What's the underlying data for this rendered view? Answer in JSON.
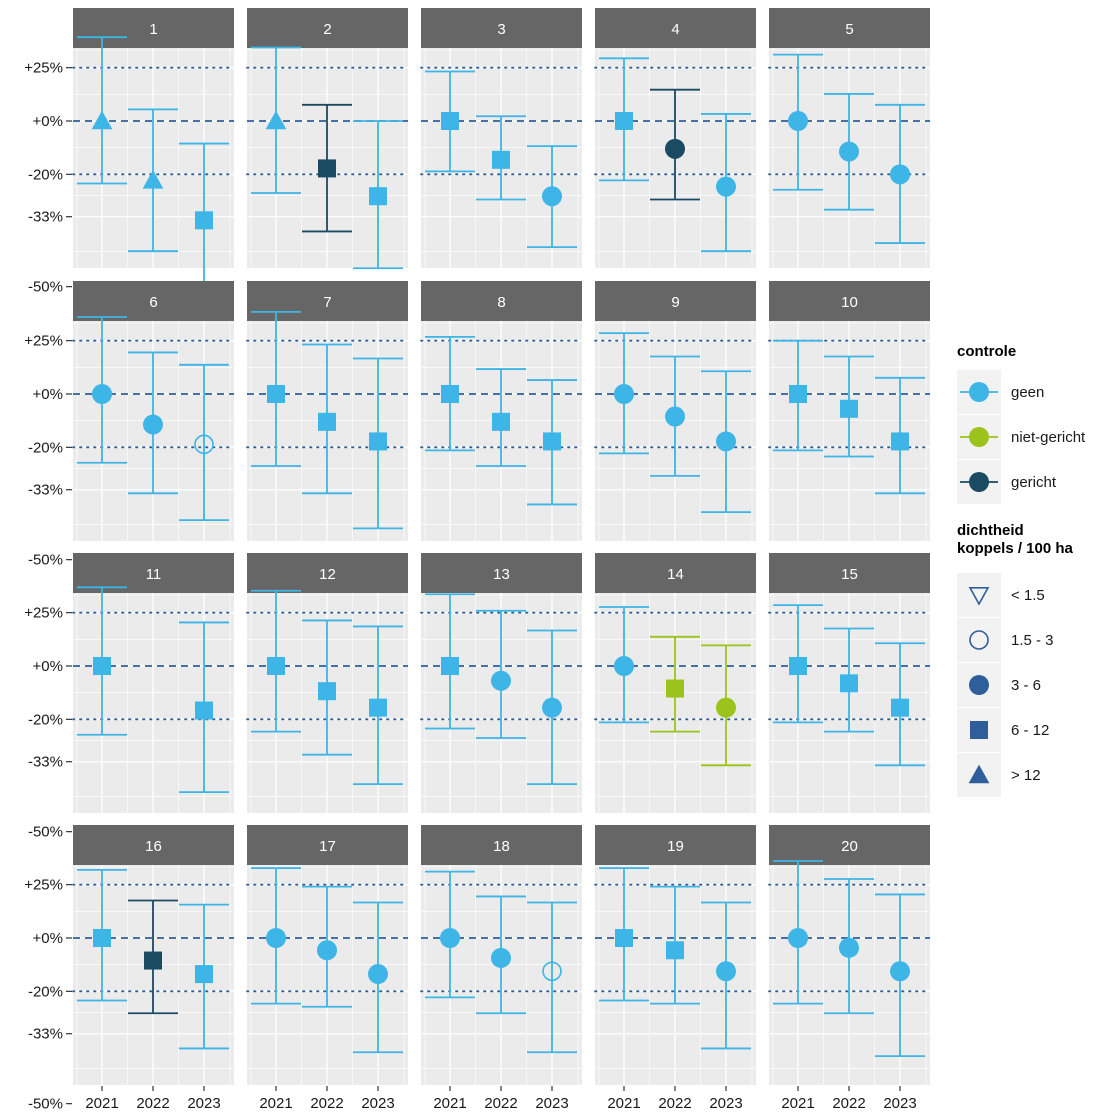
{
  "chart_data": {
    "type": "errorbar-faceted",
    "categories": [
      "2021",
      "2022",
      "2023"
    ],
    "y_scale": "log-ratio",
    "y_ticks": [
      {
        "value": 25,
        "label": "+25%"
      },
      {
        "value": 0,
        "label": "+0%"
      },
      {
        "value": -20,
        "label": "-20%"
      },
      {
        "value": -33,
        "label": "-33%"
      },
      {
        "value": -50,
        "label": "-50%"
      }
    ],
    "dashed_line": 0,
    "dotted_lines": [
      25,
      -20
    ],
    "ylim": [
      -55,
      45
    ],
    "grid": true,
    "colors": {
      "geen": "#3db5e6",
      "niet-gericht": "#9bc31b",
      "gericht": "#1b4a63",
      "strip_bg": "#666666",
      "panel_bg": "#ebebeb",
      "ref_line": "#2f5f9a",
      "legend_shape": "#2f5f9a"
    },
    "legend": {
      "position": "right",
      "color_title": "controle",
      "color_items": [
        "geen",
        "niet-gericht",
        "gericht"
      ],
      "shape_title_line1": "dichtheid",
      "shape_title_line2": "koppels / 100 ha",
      "shape_items": [
        {
          "label": "< 1.5",
          "shape": "triangle-down-open"
        },
        {
          "label": "1.5 - 3",
          "shape": "circle-open"
        },
        {
          "label": "3 - 6",
          "shape": "circle"
        },
        {
          "label": "6 - 12",
          "shape": "square"
        },
        {
          "label": "> 12",
          "shape": "triangle"
        }
      ]
    },
    "facets": [
      {
        "label": "1",
        "points": [
          {
            "year": "2021",
            "y": 0,
            "lo": -23,
            "hi": 42,
            "controle": "geen",
            "shape": "triangle"
          },
          {
            "year": "2022",
            "y": -22,
            "lo": -42,
            "hi": 5,
            "controle": "geen",
            "shape": "triangle"
          },
          {
            "year": "2023",
            "y": -34,
            "lo": -55,
            "hi": -9,
            "controle": "geen",
            "shape": "square"
          }
        ]
      },
      {
        "label": "2",
        "points": [
          {
            "year": "2021",
            "y": 0,
            "lo": -26,
            "hi": 36,
            "controle": "geen",
            "shape": "triangle"
          },
          {
            "year": "2022",
            "y": -18,
            "lo": -37,
            "hi": 7,
            "controle": "gericht",
            "shape": "square"
          },
          {
            "year": "2023",
            "y": -27,
            "lo": -46,
            "hi": 0,
            "controle": "geen",
            "shape": "square"
          }
        ]
      },
      {
        "label": "3",
        "points": [
          {
            "year": "2021",
            "y": 0,
            "lo": -19,
            "hi": 23,
            "controle": "geen",
            "shape": "square"
          },
          {
            "year": "2022",
            "y": -15,
            "lo": -28,
            "hi": 2,
            "controle": "geen",
            "shape": "square"
          },
          {
            "year": "2023",
            "y": -27,
            "lo": -41,
            "hi": -10,
            "controle": "geen",
            "shape": "circle"
          }
        ]
      },
      {
        "label": "4",
        "points": [
          {
            "year": "2021",
            "y": 0,
            "lo": -22,
            "hi": 30,
            "controle": "geen",
            "shape": "square"
          },
          {
            "year": "2022",
            "y": -11,
            "lo": -28,
            "hi": 14,
            "controle": "gericht",
            "shape": "circle"
          },
          {
            "year": "2023",
            "y": -24,
            "lo": -42,
            "hi": 3,
            "controle": "geen",
            "shape": "circle"
          }
        ]
      },
      {
        "label": "5",
        "points": [
          {
            "year": "2021",
            "y": 0,
            "lo": -25,
            "hi": 32,
            "controle": "geen",
            "shape": "circle"
          },
          {
            "year": "2022",
            "y": -12,
            "lo": -31,
            "hi": 12,
            "controle": "geen",
            "shape": "circle"
          },
          {
            "year": "2023",
            "y": -20,
            "lo": -40,
            "hi": 7,
            "controle": "geen",
            "shape": "circle"
          }
        ]
      },
      {
        "label": "6",
        "points": [
          {
            "year": "2021",
            "y": 0,
            "lo": -25,
            "hi": 38,
            "controle": "geen",
            "shape": "circle"
          },
          {
            "year": "2022",
            "y": -12,
            "lo": -34,
            "hi": 19,
            "controle": "geen",
            "shape": "circle"
          },
          {
            "year": "2023",
            "y": -19,
            "lo": -41,
            "hi": 13,
            "controle": "geen",
            "shape": "circle-open"
          }
        ]
      },
      {
        "label": "7",
        "points": [
          {
            "year": "2021",
            "y": 0,
            "lo": -26,
            "hi": 41,
            "controle": "geen",
            "shape": "square"
          },
          {
            "year": "2022",
            "y": -11,
            "lo": -34,
            "hi": 23,
            "controle": "geen",
            "shape": "square"
          },
          {
            "year": "2023",
            "y": -18,
            "lo": -43,
            "hi": 16,
            "controle": "geen",
            "shape": "square"
          }
        ]
      },
      {
        "label": "8",
        "points": [
          {
            "year": "2021",
            "y": 0,
            "lo": -21,
            "hi": 27,
            "controle": "geen",
            "shape": "square"
          },
          {
            "year": "2022",
            "y": -11,
            "lo": -26,
            "hi": 11,
            "controle": "geen",
            "shape": "square"
          },
          {
            "year": "2023",
            "y": -18,
            "lo": -37,
            "hi": 6,
            "controle": "geen",
            "shape": "square"
          }
        ]
      },
      {
        "label": "9",
        "points": [
          {
            "year": "2021",
            "y": 0,
            "lo": -22,
            "hi": 29,
            "controle": "geen",
            "shape": "circle"
          },
          {
            "year": "2022",
            "y": -9,
            "lo": -29,
            "hi": 17,
            "controle": "geen",
            "shape": "circle"
          },
          {
            "year": "2023",
            "y": -18,
            "lo": -39,
            "hi": 10,
            "controle": "geen",
            "shape": "circle"
          }
        ]
      },
      {
        "label": "10",
        "points": [
          {
            "year": "2021",
            "y": 0,
            "lo": -21,
            "hi": 25,
            "controle": "geen",
            "shape": "square"
          },
          {
            "year": "2022",
            "y": -6,
            "lo": -23,
            "hi": 17,
            "controle": "geen",
            "shape": "square"
          },
          {
            "year": "2023",
            "y": -18,
            "lo": -34,
            "hi": 7,
            "controle": "geen",
            "shape": "square"
          }
        ]
      },
      {
        "label": "11",
        "points": [
          {
            "year": "2021",
            "y": 0,
            "lo": -25,
            "hi": 39,
            "controle": "geen",
            "shape": "square"
          },
          {
            "year": "2023",
            "y": -17,
            "lo": -41,
            "hi": 20,
            "controle": "geen",
            "shape": "square"
          }
        ]
      },
      {
        "label": "12",
        "points": [
          {
            "year": "2021",
            "y": 0,
            "lo": -24,
            "hi": 37,
            "controle": "geen",
            "shape": "square"
          },
          {
            "year": "2022",
            "y": -10,
            "lo": -31,
            "hi": 21,
            "controle": "geen",
            "shape": "square"
          },
          {
            "year": "2023",
            "y": -16,
            "lo": -39,
            "hi": 18,
            "controle": "geen",
            "shape": "square"
          }
        ]
      },
      {
        "label": "13",
        "points": [
          {
            "year": "2021",
            "y": 0,
            "lo": -23,
            "hi": 35,
            "controle": "geen",
            "shape": "square"
          },
          {
            "year": "2022",
            "y": -6,
            "lo": -26,
            "hi": 26,
            "controle": "geen",
            "shape": "circle"
          },
          {
            "year": "2023",
            "y": -16,
            "lo": -39,
            "hi": 16,
            "controle": "geen",
            "shape": "circle"
          }
        ]
      },
      {
        "label": "14",
        "points": [
          {
            "year": "2021",
            "y": 0,
            "lo": -21,
            "hi": 28,
            "controle": "geen",
            "shape": "circle"
          },
          {
            "year": "2022",
            "y": -9,
            "lo": -24,
            "hi": 13,
            "controle": "niet-gericht",
            "shape": "square"
          },
          {
            "year": "2023",
            "y": -16,
            "lo": -34,
            "hi": 9,
            "controle": "niet-gericht",
            "shape": "circle"
          }
        ]
      },
      {
        "label": "15",
        "points": [
          {
            "year": "2021",
            "y": 0,
            "lo": -21,
            "hi": 29,
            "controle": "geen",
            "shape": "square"
          },
          {
            "year": "2022",
            "y": -7,
            "lo": -24,
            "hi": 17,
            "controle": "geen",
            "shape": "square"
          },
          {
            "year": "2023",
            "y": -16,
            "lo": -34,
            "hi": 10,
            "controle": "geen",
            "shape": "square"
          }
        ]
      },
      {
        "label": "16",
        "points": [
          {
            "year": "2021",
            "y": 0,
            "lo": -23,
            "hi": 33,
            "controle": "geen",
            "shape": "square"
          },
          {
            "year": "2022",
            "y": -9,
            "lo": -27,
            "hi": 17,
            "controle": "gericht",
            "shape": "square"
          },
          {
            "year": "2023",
            "y": -14,
            "lo": -37,
            "hi": 15,
            "controle": "geen",
            "shape": "square"
          }
        ]
      },
      {
        "label": "17",
        "points": [
          {
            "year": "2021",
            "y": 0,
            "lo": -24,
            "hi": 34,
            "controle": "geen",
            "shape": "circle"
          },
          {
            "year": "2022",
            "y": -5,
            "lo": -25,
            "hi": 24,
            "controle": "geen",
            "shape": "circle"
          },
          {
            "year": "2023",
            "y": -14,
            "lo": -38,
            "hi": 16,
            "controle": "geen",
            "shape": "circle"
          }
        ]
      },
      {
        "label": "18",
        "points": [
          {
            "year": "2021",
            "y": 0,
            "lo": -22,
            "hi": 32,
            "controle": "geen",
            "shape": "circle"
          },
          {
            "year": "2022",
            "y": -8,
            "lo": -27,
            "hi": 19,
            "controle": "geen",
            "shape": "circle"
          },
          {
            "year": "2023",
            "y": -13,
            "lo": -38,
            "hi": 16,
            "controle": "geen",
            "shape": "circle-open"
          }
        ]
      },
      {
        "label": "19",
        "points": [
          {
            "year": "2021",
            "y": 0,
            "lo": -23,
            "hi": 34,
            "controle": "geen",
            "shape": "square"
          },
          {
            "year": "2022",
            "y": -5,
            "lo": -24,
            "hi": 24,
            "controle": "geen",
            "shape": "square"
          },
          {
            "year": "2023",
            "y": -13,
            "lo": -37,
            "hi": 16,
            "controle": "geen",
            "shape": "circle"
          }
        ]
      },
      {
        "label": "20",
        "points": [
          {
            "year": "2021",
            "y": 0,
            "lo": -24,
            "hi": 38,
            "controle": "geen",
            "shape": "circle"
          },
          {
            "year": "2022",
            "y": -4,
            "lo": -27,
            "hi": 28,
            "controle": "geen",
            "shape": "circle"
          },
          {
            "year": "2023",
            "y": -13,
            "lo": -39,
            "hi": 20,
            "controle": "geen",
            "shape": "circle"
          }
        ]
      }
    ]
  }
}
